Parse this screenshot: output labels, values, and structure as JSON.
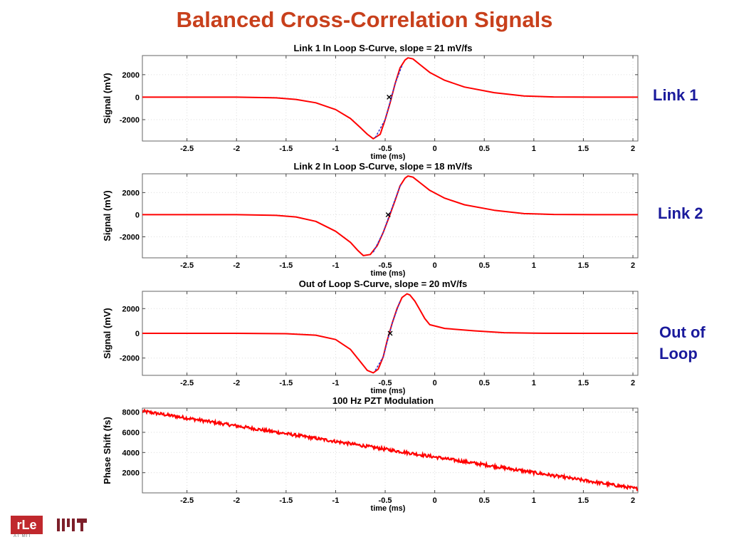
{
  "slide": {
    "title": "Balanced Cross-Correlation Signals",
    "side_labels": [
      "Link 1",
      "Link 2",
      "Out of\nLoop"
    ],
    "logo_text": "rLe",
    "logo_subtext": "AT MIT"
  },
  "colors": {
    "title": "#c8401c",
    "side_label": "#1a1a9c",
    "trace": "#ff0000",
    "fit": "#3333cc",
    "grid": "#dddddd"
  },
  "chart_data": [
    {
      "type": "line",
      "title": "Link 1 In Loop S-Curve, slope = 21 mV/fs",
      "xlabel": "time (ms)",
      "ylabel": "Signal (mV)",
      "xlim": [
        -2.95,
        2.05
      ],
      "ylim": [
        -3900,
        3700
      ],
      "xticks": [
        -2.5,
        -2,
        -1.5,
        -1,
        -0.5,
        0,
        0.5,
        1,
        1.5,
        2
      ],
      "xticklabels": [
        "-2.5",
        "-2",
        "-1.5",
        "-1",
        "-0.5",
        "0",
        "0.5",
        "1",
        "1.5",
        "2"
      ],
      "yticks": [
        2000,
        0,
        -2000
      ],
      "yticklabels": [
        "2000",
        "0",
        "-2000"
      ],
      "grid": true,
      "series": [
        {
          "color": "#ff0000",
          "x": [
            -2.95,
            -2.5,
            -2.0,
            -1.6,
            -1.4,
            -1.2,
            -1.0,
            -0.85,
            -0.75,
            -0.68,
            -0.62,
            -0.55,
            -0.5,
            -0.45,
            -0.4,
            -0.35,
            -0.3,
            -0.27,
            -0.22,
            -0.15,
            -0.05,
            0.1,
            0.3,
            0.6,
            0.9,
            1.2,
            1.6,
            2.05
          ],
          "y": [
            0,
            0,
            0,
            -60,
            -200,
            -500,
            -1100,
            -1900,
            -2700,
            -3300,
            -3700,
            -3300,
            -2000,
            -500,
            1200,
            2600,
            3300,
            3500,
            3400,
            2900,
            2200,
            1500,
            900,
            400,
            100,
            20,
            0,
            0
          ]
        }
      ],
      "fit": {
        "color": "#3333cc",
        "x": [
          -0.6,
          -0.5,
          -0.4,
          -0.33
        ],
        "y": [
          -3600,
          -2000,
          1200,
          2800
        ]
      },
      "marker": {
        "symbol": "x",
        "x": -0.46,
        "y": 0
      }
    },
    {
      "type": "line",
      "title": "Link 2 In Loop S-Curve, slope = 18 mV/fs",
      "xlabel": "time (ms)",
      "ylabel": "Signal (mV)",
      "xlim": [
        -2.95,
        2.05
      ],
      "ylim": [
        -3900,
        3700
      ],
      "xticks": [
        -2.5,
        -2,
        -1.5,
        -1,
        -0.5,
        0,
        0.5,
        1,
        1.5,
        2
      ],
      "xticklabels": [
        "-2.5",
        "-2",
        "-1.5",
        "-1",
        "-0.5",
        "0",
        "0.5",
        "1",
        "1.5",
        "2"
      ],
      "yticks": [
        2000,
        0,
        -2000
      ],
      "yticklabels": [
        "2000",
        "0",
        "-2000"
      ],
      "grid": true,
      "series": [
        {
          "color": "#ff0000",
          "x": [
            -2.95,
            -2.5,
            -2.0,
            -1.6,
            -1.4,
            -1.2,
            -1.0,
            -0.85,
            -0.78,
            -0.72,
            -0.65,
            -0.58,
            -0.52,
            -0.46,
            -0.4,
            -0.35,
            -0.3,
            -0.27,
            -0.22,
            -0.15,
            -0.05,
            0.1,
            0.3,
            0.6,
            0.9,
            1.2,
            1.6,
            2.05
          ],
          "y": [
            0,
            0,
            0,
            -60,
            -200,
            -600,
            -1500,
            -2500,
            -3200,
            -3700,
            -3600,
            -2800,
            -1600,
            -200,
            1300,
            2600,
            3300,
            3500,
            3400,
            2900,
            2200,
            1500,
            900,
            400,
            100,
            20,
            0,
            0
          ]
        }
      ],
      "fit": {
        "color": "#3333cc",
        "x": [
          -0.62,
          -0.52,
          -0.42,
          -0.34
        ],
        "y": [
          -3400,
          -1600,
          900,
          2800
        ]
      },
      "marker": {
        "symbol": "x",
        "x": -0.47,
        "y": 0
      }
    },
    {
      "type": "line",
      "title": "Out of Loop S-Curve, slope = 20 mV/fs",
      "xlabel": "time (ms)",
      "ylabel": "Signal (mV)",
      "xlim": [
        -2.95,
        2.05
      ],
      "ylim": [
        -3400,
        3400
      ],
      "xticks": [
        -2.5,
        -2,
        -1.5,
        -1,
        -0.5,
        0,
        0.5,
        1,
        1.5,
        2
      ],
      "xticklabels": [
        "-2.5",
        "-2",
        "-1.5",
        "-1",
        "-0.5",
        "0",
        "0.5",
        "1",
        "1.5",
        "2"
      ],
      "yticks": [
        2000,
        0,
        -2000
      ],
      "yticklabels": [
        "2000",
        "0",
        "-2000"
      ],
      "grid": true,
      "series": [
        {
          "color": "#ff0000",
          "x": [
            -2.95,
            -2.5,
            -2.0,
            -1.5,
            -1.2,
            -1.0,
            -0.85,
            -0.75,
            -0.68,
            -0.62,
            -0.57,
            -0.52,
            -0.48,
            -0.43,
            -0.38,
            -0.33,
            -0.28,
            -0.25,
            -0.2,
            -0.15,
            -0.1,
            -0.05,
            0.1,
            0.4,
            0.7,
            1.0,
            1.5,
            2.05
          ],
          "y": [
            0,
            0,
            0,
            -30,
            -150,
            -500,
            -1300,
            -2300,
            -3000,
            -3200,
            -2900,
            -1900,
            -600,
            800,
            2000,
            2900,
            3200,
            3100,
            2600,
            1900,
            1200,
            700,
            400,
            200,
            50,
            10,
            0,
            0
          ]
        }
      ],
      "fit": {
        "color": "#3333cc",
        "x": [
          -0.6,
          -0.52,
          -0.43,
          -0.35
        ],
        "y": [
          -3000,
          -1900,
          800,
          2600
        ]
      },
      "marker": {
        "symbol": "x",
        "x": -0.45,
        "y": 0
      }
    },
    {
      "type": "line",
      "title": "100 Hz PZT Modulation",
      "xlabel": "time (ms)",
      "ylabel": "Phase Shift (fs)",
      "xlim": [
        -2.95,
        2.05
      ],
      "ylim": [
        0,
        8400
      ],
      "xticks": [
        -2.5,
        -2,
        -1.5,
        -1,
        -0.5,
        0,
        0.5,
        1,
        1.5,
        2
      ],
      "xticklabels": [
        "-2.5",
        "-2",
        "-1.5",
        "-1",
        "-0.5",
        "0",
        "0.5",
        "1",
        "1.5",
        "2"
      ],
      "yticks": [
        8000,
        6000,
        4000,
        2000
      ],
      "yticklabels": [
        "8000",
        "6000",
        "4000",
        "2000"
      ],
      "grid": true,
      "series": [
        {
          "color": "#ff0000",
          "x": [
            -2.95,
            2.05
          ],
          "y": [
            8100,
            400
          ],
          "noise": 150
        }
      ]
    }
  ]
}
